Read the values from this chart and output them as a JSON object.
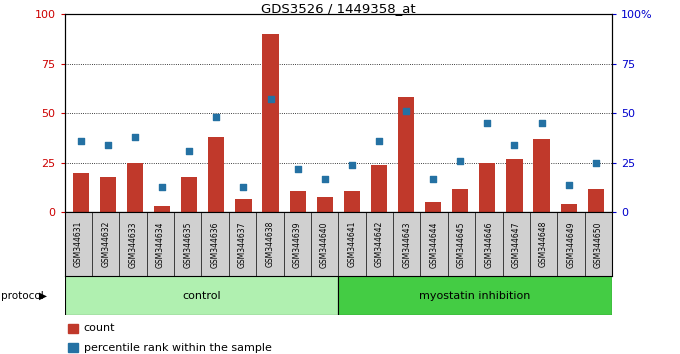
{
  "title": "GDS3526 / 1449358_at",
  "samples": [
    "GSM344631",
    "GSM344632",
    "GSM344633",
    "GSM344634",
    "GSM344635",
    "GSM344636",
    "GSM344637",
    "GSM344638",
    "GSM344639",
    "GSM344640",
    "GSM344641",
    "GSM344642",
    "GSM344643",
    "GSM344644",
    "GSM344645",
    "GSM344646",
    "GSM344647",
    "GSM344648",
    "GSM344649",
    "GSM344650"
  ],
  "counts": [
    20,
    18,
    25,
    3,
    18,
    38,
    7,
    90,
    11,
    8,
    11,
    24,
    58,
    5,
    12,
    25,
    27,
    37,
    4,
    12
  ],
  "percentiles": [
    36,
    34,
    38,
    13,
    31,
    48,
    13,
    57,
    22,
    17,
    24,
    36,
    51,
    17,
    26,
    45,
    34,
    45,
    14,
    25
  ],
  "control_count": 10,
  "myostatin_count": 10,
  "bar_color": "#c0392b",
  "dot_color": "#2471a3",
  "plot_bg": "#ffffff",
  "label_bg": "#d0d0d0",
  "ylim": [
    0,
    100
  ],
  "y_ticks": [
    0,
    25,
    50,
    75,
    100
  ],
  "legend_count": "count",
  "legend_pct": "percentile rank within the sample",
  "protocol_label": "protocol",
  "control_label": "control",
  "myostatin_label": "myostatin inhibition",
  "left_axis_color": "#cc0000",
  "right_axis_color": "#0000cc",
  "control_color": "#b0f0b0",
  "myostatin_color": "#44cc44"
}
